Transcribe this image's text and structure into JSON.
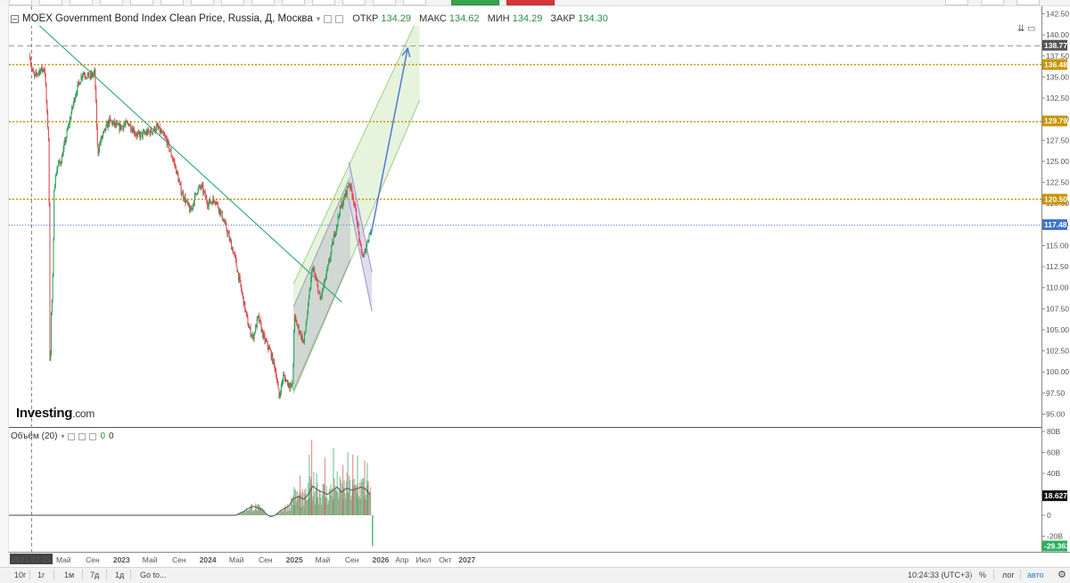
{
  "legend": {
    "title": "MOEX Government Bond Index Clean Price, Russia, Д, Москва",
    "ohlc": [
      {
        "label": "ОТКР",
        "value": "134.29"
      },
      {
        "label": "МАКС",
        "value": "134.62"
      },
      {
        "label": "МИН",
        "value": "134.29"
      },
      {
        "label": "ЗАКР",
        "value": "134.30"
      }
    ]
  },
  "volume_legend": {
    "label": "Объём (20)",
    "value_a": "0",
    "value_b": "0"
  },
  "logo": {
    "main": "Investing",
    "suffix": ".com"
  },
  "colors": {
    "up": "#26a65b",
    "down": "#e0474c",
    "trend": "#2aa77d",
    "level": "#c79400",
    "blue_level": "#4f7fd6",
    "arrow": "#4f7bd1",
    "channel_fill": "#ddf0d3",
    "channel_edge": "#9ccf85",
    "wedge_fill": "#d5d2ec",
    "wedge_edge": "#9d8fd8"
  },
  "chart_data": {
    "type": "candlestick",
    "instrument": "MOEX Government Bond Index Clean Price, Russia",
    "timeframe": "Д",
    "y_axis": {
      "min": 95.0,
      "max": 142.5,
      "ticks": [
        "95.00",
        "97.50",
        "100.00",
        "102.50",
        "105.00",
        "107.50",
        "110.00",
        "112.50",
        "115.00",
        "117.50",
        "120.00",
        "122.50",
        "125.00",
        "127.50",
        "130.00",
        "132.50",
        "135.00",
        "137.50",
        "140.00",
        "142.50"
      ]
    },
    "x_axis": {
      "labels": [
        {
          "t": "2021-12-15",
          "date": "2021-12-15",
          "highlight": true
        },
        {
          "t": "Май",
          "date": "2022-05-01"
        },
        {
          "t": "Сен",
          "date": "2022-09-01"
        },
        {
          "t": "2023",
          "date": "2023-01-01",
          "bold": true
        },
        {
          "t": "Май",
          "date": "2023-05-01"
        },
        {
          "t": "Сен",
          "date": "2023-09-01"
        },
        {
          "t": "2024",
          "date": "2024-01-01",
          "bold": true
        },
        {
          "t": "Май",
          "date": "2024-05-01"
        },
        {
          "t": "Сен",
          "date": "2024-09-01"
        },
        {
          "t": "2025",
          "date": "2025-01-01",
          "bold": true
        },
        {
          "t": "Май",
          "date": "2025-05-01"
        },
        {
          "t": "Сен",
          "date": "2025-09-01"
        },
        {
          "t": "2026",
          "date": "2026-01-01",
          "bold": true
        },
        {
          "t": "Апр",
          "date": "2026-04-01"
        },
        {
          "t": "Июл",
          "date": "2026-07-01"
        },
        {
          "t": "Окт",
          "date": "2026-10-01"
        },
        {
          "t": "2027",
          "date": "2027-01-01",
          "bold": true
        }
      ]
    },
    "price_path": [
      [
        "2021-12-10",
        137.5
      ],
      [
        "2021-12-15",
        136.2
      ],
      [
        "2021-12-28",
        135.0
      ],
      [
        "2022-01-20",
        135.8
      ],
      [
        "2022-02-10",
        136.0
      ],
      [
        "2022-02-20",
        130.5
      ],
      [
        "2022-02-28",
        127.0
      ],
      [
        "2022-03-03",
        105.0
      ],
      [
        "2022-03-05",
        98.5
      ],
      [
        "2022-03-09",
        106.5
      ],
      [
        "2022-03-14",
        109.0
      ],
      [
        "2022-03-18",
        113.0
      ],
      [
        "2022-03-22",
        122.0
      ],
      [
        "2022-04-05",
        124.5
      ],
      [
        "2022-04-20",
        125.0
      ],
      [
        "2022-05-20",
        129.0
      ],
      [
        "2022-06-20",
        133.0
      ],
      [
        "2022-07-20",
        135.5
      ],
      [
        "2022-08-20",
        135.0
      ],
      [
        "2022-09-10",
        135.5
      ],
      [
        "2022-09-22",
        126.0
      ],
      [
        "2022-10-05",
        127.5
      ],
      [
        "2022-11-10",
        129.8
      ],
      [
        "2022-12-20",
        129.0
      ],
      [
        "2023-02-01",
        129.5
      ],
      [
        "2023-03-10",
        128.0
      ],
      [
        "2023-05-01",
        128.5
      ],
      [
        "2023-06-01",
        129.0
      ],
      [
        "2023-07-10",
        127.5
      ],
      [
        "2023-08-15",
        124.5
      ],
      [
        "2023-09-10",
        121.5
      ],
      [
        "2023-10-20",
        119.0
      ],
      [
        "2023-11-15",
        121.5
      ],
      [
        "2023-12-05",
        122.0
      ],
      [
        "2024-01-01",
        120.0
      ],
      [
        "2024-02-01",
        120.5
      ],
      [
        "2024-03-01",
        118.5
      ],
      [
        "2024-03-25",
        116.5
      ],
      [
        "2024-04-25",
        113.5
      ],
      [
        "2024-05-30",
        108.5
      ],
      [
        "2024-06-20",
        105.5
      ],
      [
        "2024-07-10",
        104.0
      ],
      [
        "2024-08-01",
        106.5
      ],
      [
        "2024-08-25",
        104.0
      ],
      [
        "2024-09-20",
        102.5
      ],
      [
        "2024-10-15",
        100.0
      ],
      [
        "2024-10-28",
        97.0
      ],
      [
        "2024-11-15",
        99.5
      ],
      [
        "2024-12-10",
        98.5
      ],
      [
        "2024-12-25",
        98.2
      ],
      [
        "2024-12-31",
        106.5
      ],
      [
        "2025-01-20",
        105.0
      ],
      [
        "2025-02-10",
        103.5
      ],
      [
        "2025-03-01",
        108.0
      ],
      [
        "2025-03-18",
        112.5
      ],
      [
        "2025-04-10",
        110.0
      ],
      [
        "2025-04-20",
        108.5
      ],
      [
        "2025-05-20",
        112.0
      ],
      [
        "2025-06-10",
        115.0
      ],
      [
        "2025-07-10",
        119.0
      ],
      [
        "2025-08-10",
        121.5
      ],
      [
        "2025-08-20",
        122.5
      ],
      [
        "2025-09-05",
        121.0
      ],
      [
        "2025-09-25",
        117.5
      ],
      [
        "2025-10-05",
        115.0
      ],
      [
        "2025-10-20",
        113.5
      ],
      [
        "2025-11-05",
        115.5
      ],
      [
        "2025-11-20",
        117.0
      ]
    ],
    "horizontal_levels": [
      {
        "value": 136.48,
        "label": "136.48",
        "style": "dotted",
        "color": "#c79400"
      },
      {
        "value": 129.79,
        "label": "129.79",
        "style": "dotted",
        "color": "#c79400"
      },
      {
        "value": 120.5,
        "label": "120.50",
        "style": "dotted",
        "color": "#c79400"
      },
      {
        "value": 117.48,
        "label": "117.48",
        "style": "dotted-thin",
        "color": "#4f7fd6"
      },
      {
        "value": 138.77,
        "label": "138.77",
        "style": "dashed",
        "color": "#999999"
      }
    ],
    "trendline": {
      "from": [
        "2021-11-25",
        142.5
      ],
      "to": [
        "2025-07-20",
        108.3
      ]
    },
    "channel_green": {
      "upper": [
        [
          "2024-12-28",
          110.4
        ],
        [
          "2026-06-15",
          142.5
        ]
      ],
      "lower": [
        [
          "2024-12-28",
          97.5
        ],
        [
          "2026-06-15",
          132.3
        ]
      ]
    },
    "channel_grey": {
      "upper": [
        [
          "2024-12-28",
          107.7
        ],
        [
          "2025-08-25",
          123.2
        ]
      ],
      "lower": [
        [
          "2024-12-28",
          97.8
        ],
        [
          "2025-08-25",
          113.3
        ]
      ]
    },
    "wedge_purple": {
      "upper": [
        [
          "2025-08-20",
          124.9
        ],
        [
          "2025-11-25",
          111.8
        ]
      ],
      "lower": [
        [
          "2025-08-20",
          120.3
        ],
        [
          "2025-11-25",
          107.2
        ]
      ]
    },
    "arrow": {
      "from": [
        "2025-11-20",
        116.2
      ],
      "to": [
        "2026-04-25",
        138.4
      ]
    },
    "crosshair_date": "2021-12-15",
    "volume": {
      "y_ticks": [
        "80B",
        "60B",
        "40B",
        "20B",
        "0",
        "-20B"
      ],
      "y_range": [
        -29.36,
        80
      ],
      "last_labels": [
        {
          "value": 18.627,
          "label": "18.627B"
        },
        {
          "value": -29.36,
          "label": "-29.363B"
        }
      ],
      "series": [
        [
          "2024-05-01",
          0.5
        ],
        [
          "2024-05-15",
          2.0
        ],
        [
          "2024-06-01",
          3.5
        ],
        [
          "2024-06-20",
          6.5
        ],
        [
          "2024-07-10",
          8.5
        ],
        [
          "2024-08-01",
          7.0
        ],
        [
          "2024-08-20",
          5.0
        ],
        [
          "2024-09-05",
          1.0
        ],
        [
          "2024-09-25",
          -1.5
        ],
        [
          "2024-10-15",
          0.5
        ],
        [
          "2024-11-01",
          4.0
        ],
        [
          "2024-11-20",
          6.5
        ],
        [
          "2024-12-10",
          9.0
        ],
        [
          "2024-12-28",
          16.0
        ],
        [
          "2025-01-20",
          18.0
        ],
        [
          "2025-02-10",
          15.0
        ],
        [
          "2025-03-01",
          20.0
        ],
        [
          "2025-03-20",
          28.0
        ],
        [
          "2025-04-10",
          24.0
        ],
        [
          "2025-05-01",
          22.0
        ],
        [
          "2025-05-20",
          20.0
        ],
        [
          "2025-06-10",
          23.0
        ],
        [
          "2025-07-01",
          27.0
        ],
        [
          "2025-07-20",
          22.0
        ],
        [
          "2025-08-10",
          26.0
        ],
        [
          "2025-08-30",
          24.0
        ],
        [
          "2025-09-20",
          25.0
        ],
        [
          "2025-10-10",
          27.0
        ],
        [
          "2025-10-30",
          25.0
        ],
        [
          "2025-11-20",
          18.6
        ]
      ],
      "peaks": [
        [
          "2024-12-31",
          27.0
        ],
        [
          "2025-01-25",
          38.0
        ],
        [
          "2025-03-05",
          58.0
        ],
        [
          "2025-03-15",
          72.0
        ],
        [
          "2025-04-05",
          40.0
        ],
        [
          "2025-05-10",
          55.0
        ],
        [
          "2025-06-15",
          64.0
        ],
        [
          "2025-07-25",
          48.0
        ],
        [
          "2025-08-15",
          60.0
        ],
        [
          "2025-09-05",
          58.0
        ],
        [
          "2025-09-25",
          57.0
        ],
        [
          "2025-10-25",
          52.0
        ],
        [
          "2025-11-05",
          50.0
        ]
      ]
    }
  },
  "toolbar": {
    "ranges": [
      "10г",
      "1г",
      "1м",
      "7д",
      "1д"
    ],
    "goto": "Go to...",
    "time": "10:24:33 (UTC+3)",
    "percent": "%",
    "log": "лог",
    "auto": "авто"
  }
}
